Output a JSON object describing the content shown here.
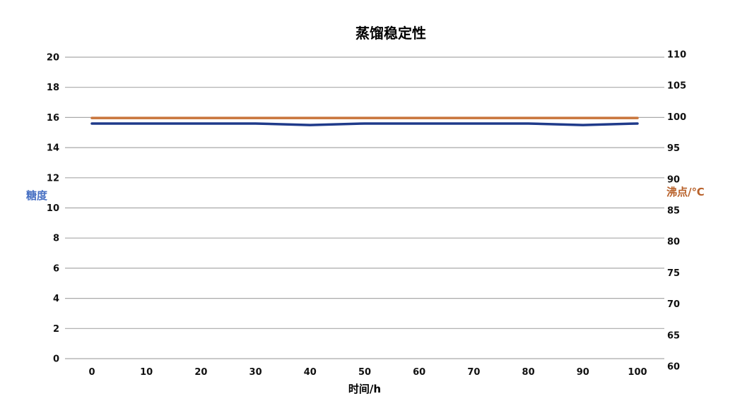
{
  "chart_data": {
    "type": "line",
    "title": "蒸馏稳定性",
    "xlabel": "时间/h",
    "ylabel_left": "糖度",
    "ylabel_right": "沸点/℃",
    "x": [
      0,
      10,
      20,
      30,
      40,
      50,
      60,
      70,
      80,
      90,
      100
    ],
    "ylim_left": [
      0,
      20
    ],
    "yticks_left": [
      0,
      2,
      4,
      6,
      8,
      10,
      12,
      14,
      16,
      18,
      20
    ],
    "ylim_right": [
      60,
      110
    ],
    "yticks_right": [
      60,
      65,
      70,
      75,
      80,
      85,
      90,
      95,
      100,
      105,
      110
    ],
    "grid": true,
    "series": [
      {
        "axis": "left",
        "color": "#1f3a8a",
        "values": [
          15.6,
          15.6,
          15.6,
          15.6,
          15.5,
          15.6,
          15.6,
          15.6,
          15.6,
          15.5,
          15.6
        ]
      },
      {
        "axis": "right",
        "color": "#c8743a",
        "values": [
          99.8,
          99.8,
          99.8,
          99.8,
          99.8,
          99.8,
          99.8,
          99.8,
          99.8,
          99.8,
          99.8
        ]
      }
    ],
    "colors": {
      "left_label": "#4a72c4",
      "right_label": "#b8612a"
    }
  }
}
